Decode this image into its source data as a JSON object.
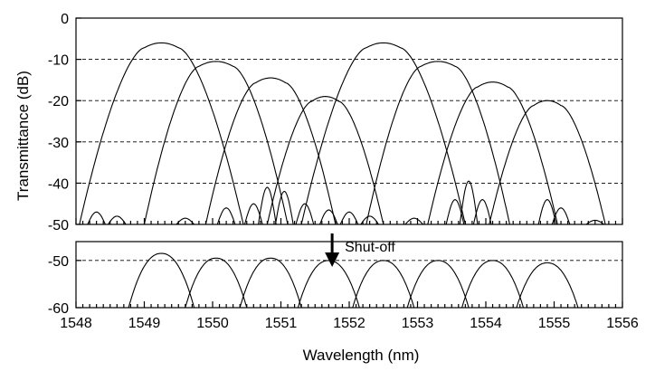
{
  "chart_data": {
    "type": "line",
    "xlabel": "Wavelength (nm)",
    "ylabel": "Transmittance (dB)",
    "xlim": [
      1548,
      1556
    ],
    "x_ticks": [
      "1548",
      "1549",
      "1550",
      "1551",
      "1552",
      "1553",
      "1554",
      "1555",
      "1556"
    ],
    "grid": "dashed horizontal lines",
    "annotation": "Shut-off",
    "annotation_x": 1551.75,
    "top_panel": {
      "ylim": [
        -50,
        0
      ],
      "y_ticks": [
        "0",
        "-10",
        "-20",
        "-30",
        "-40",
        "-50"
      ],
      "series": [
        {
          "center": 1549.25,
          "peak": -6,
          "top_half_width": 0.25,
          "base_half_width": 1.2
        },
        {
          "center": 1550.05,
          "peak": -10.5,
          "top_half_width": 0.25,
          "base_half_width": 1.05
        },
        {
          "center": 1550.85,
          "peak": -14.5,
          "top_half_width": 0.22,
          "base_half_width": 0.95
        },
        {
          "center": 1551.65,
          "peak": -19,
          "top_half_width": 0.2,
          "base_half_width": 0.85
        },
        {
          "center": 1552.5,
          "peak": -6,
          "top_half_width": 0.25,
          "base_half_width": 1.2
        },
        {
          "center": 1553.3,
          "peak": -10.5,
          "top_half_width": 0.25,
          "base_half_width": 1.05
        },
        {
          "center": 1554.1,
          "peak": -15.5,
          "top_half_width": 0.22,
          "base_half_width": 0.95
        },
        {
          "center": 1554.9,
          "peak": -20,
          "top_half_width": 0.2,
          "base_half_width": 0.85
        }
      ],
      "sidelobes": [
        {
          "center": 1548.3,
          "peak": -47
        },
        {
          "center": 1548.6,
          "peak": -48
        },
        {
          "center": 1549.6,
          "peak": -48.5
        },
        {
          "center": 1550.2,
          "peak": -46
        },
        {
          "center": 1550.6,
          "peak": -45
        },
        {
          "center": 1550.8,
          "peak": -41
        },
        {
          "center": 1551.05,
          "peak": -42
        },
        {
          "center": 1551.35,
          "peak": -45
        },
        {
          "center": 1551.7,
          "peak": -46.5
        },
        {
          "center": 1552.0,
          "peak": -47
        },
        {
          "center": 1552.3,
          "peak": -48
        },
        {
          "center": 1552.95,
          "peak": -48.5
        },
        {
          "center": 1553.55,
          "peak": -44
        },
        {
          "center": 1553.75,
          "peak": -39.5
        },
        {
          "center": 1553.95,
          "peak": -44
        },
        {
          "center": 1554.9,
          "peak": -44
        },
        {
          "center": 1555.1,
          "peak": -46
        },
        {
          "center": 1555.6,
          "peak": -49
        }
      ]
    },
    "bottom_panel": {
      "ylim": [
        -60,
        -46
      ],
      "y_ticks": [
        "-50",
        "-60"
      ],
      "series": [
        {
          "center": 1549.25,
          "peak": -48.5,
          "half_width": 0.48
        },
        {
          "center": 1550.05,
          "peak": -49.5,
          "half_width": 0.45
        },
        {
          "center": 1550.85,
          "peak": -49.5,
          "half_width": 0.45
        },
        {
          "center": 1551.7,
          "peak": -50,
          "half_width": 0.45
        },
        {
          "center": 1552.5,
          "peak": -50,
          "half_width": 0.45
        },
        {
          "center": 1553.3,
          "peak": -50,
          "half_width": 0.45
        },
        {
          "center": 1554.1,
          "peak": -50,
          "half_width": 0.45
        },
        {
          "center": 1554.9,
          "peak": -50.5,
          "half_width": 0.45
        }
      ]
    }
  }
}
